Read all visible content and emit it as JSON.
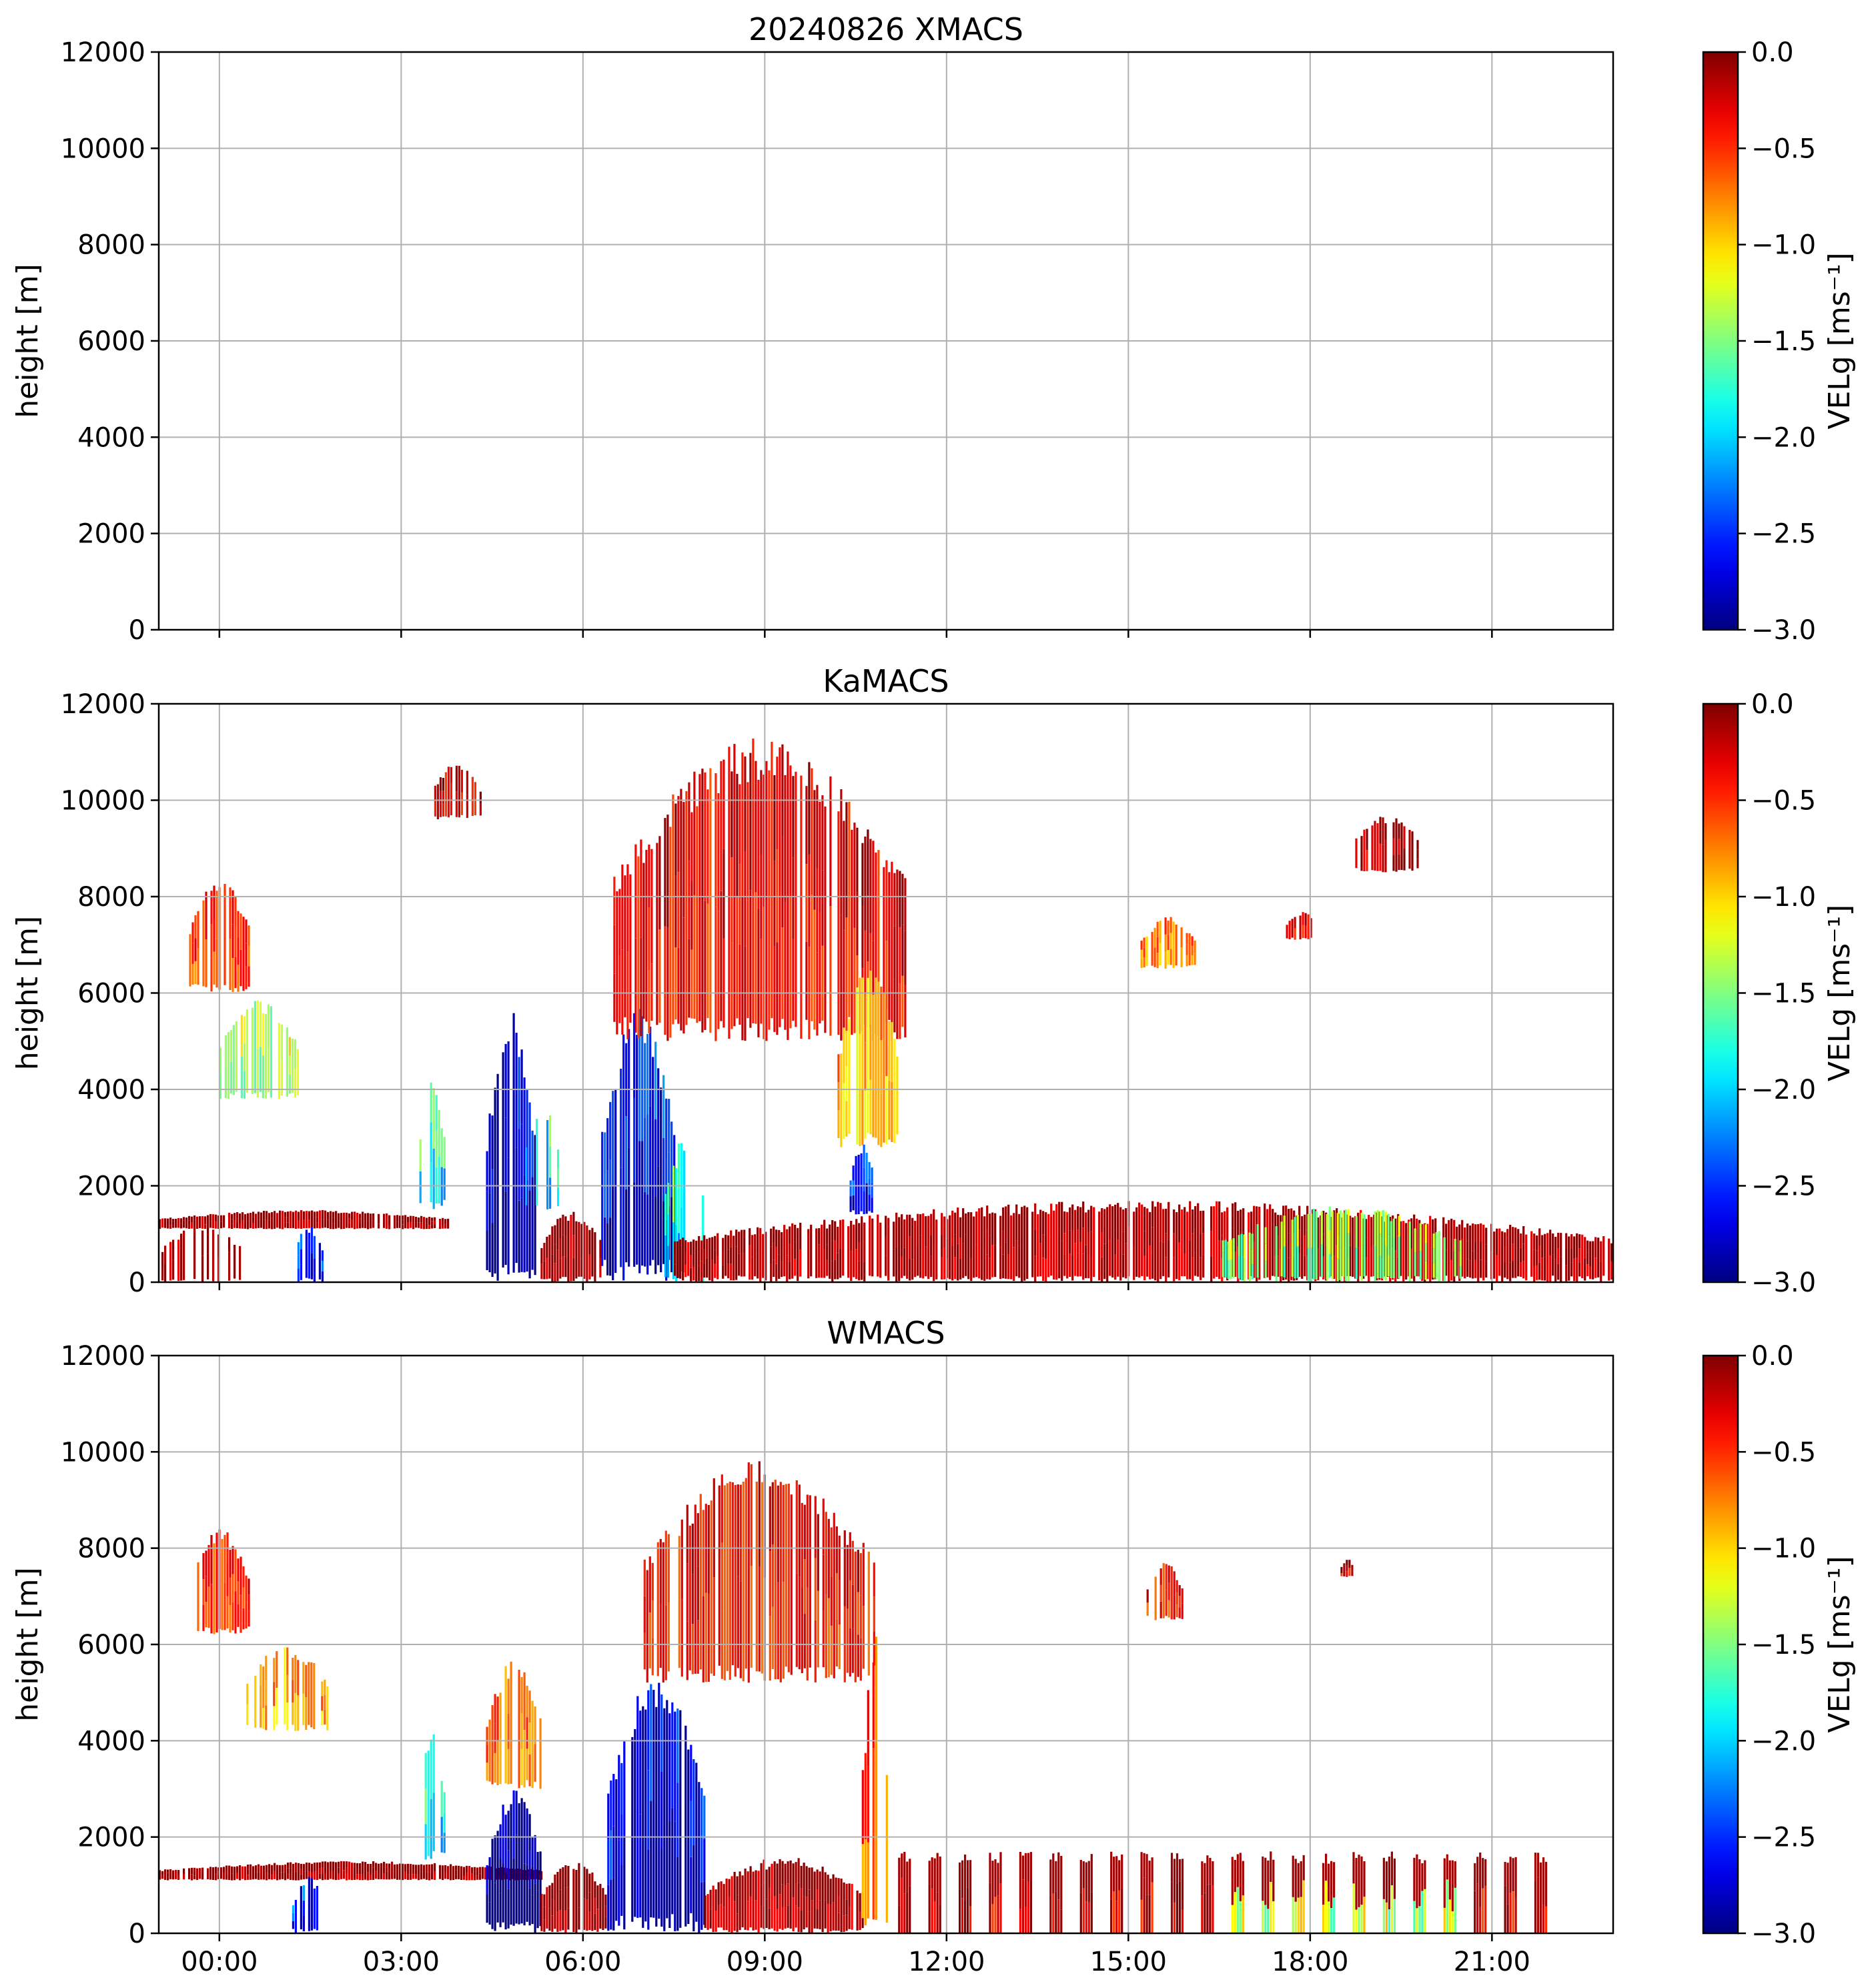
{
  "chart_data": [
    {
      "type": "heatmap",
      "title": "20240826 XMACS",
      "xlabel": "",
      "ylabel": "height [m]",
      "ylim": [
        0,
        12000
      ],
      "xlim_hours": [
        0,
        24
      ],
      "yticks": [
        0,
        2000,
        4000,
        6000,
        8000,
        10000,
        12000
      ],
      "xticks": [
        1,
        4,
        7,
        10,
        13,
        16,
        19,
        22
      ],
      "xtick_labels": [],
      "grid": true,
      "colorbar": {
        "label": "VELg [ms⁻¹]",
        "range": [
          -3.0,
          0.0
        ],
        "ticks": [
          "0.0",
          "−0.5",
          "−1.0",
          "−1.5",
          "−2.0",
          "−2.5",
          "−3.0"
        ],
        "colormap": "jet"
      },
      "regions": []
    },
    {
      "type": "heatmap",
      "title": "KaMACS",
      "xlabel": "",
      "ylabel": "height [m]",
      "ylim": [
        0,
        12000
      ],
      "xlim_hours": [
        0,
        24
      ],
      "yticks": [
        0,
        2000,
        4000,
        6000,
        8000,
        10000,
        12000
      ],
      "xticks": [
        1,
        4,
        7,
        10,
        13,
        16,
        19,
        22
      ],
      "xtick_labels": [],
      "grid": true,
      "colorbar": {
        "label": "VELg [ms⁻¹]",
        "range": [
          -3.0,
          0.0
        ],
        "ticks": [
          "0.0",
          "−0.5",
          "−1.0",
          "−1.5",
          "−2.0",
          "−2.5",
          "−3.0"
        ],
        "colormap": "jet"
      },
      "regions": [
        {
          "t0": 0.0,
          "t1": 1.4,
          "z0": 0,
          "z1": 1200,
          "v": -0.1,
          "fill": 0.45
        },
        {
          "t0": 0.0,
          "t1": 4.8,
          "z0": 1100,
          "z1": 1500,
          "v": -0.05,
          "fill": 0.95
        },
        {
          "t0": 0.5,
          "t1": 1.5,
          "z0": 6000,
          "z1": 8400,
          "v": -0.6,
          "fill": 0.85
        },
        {
          "t0": 1.0,
          "t1": 2.3,
          "z0": 3800,
          "z1": 5900,
          "v": -1.4,
          "fill": 0.7
        },
        {
          "t0": 2.2,
          "t1": 2.7,
          "z0": 0,
          "z1": 1200,
          "v": -2.5,
          "fill": 0.75
        },
        {
          "t0": 4.3,
          "t1": 4.7,
          "z0": 1500,
          "z1": 4200,
          "v": -1.8,
          "fill": 0.6
        },
        {
          "t0": 4.5,
          "t1": 5.3,
          "z0": 9600,
          "z1": 10800,
          "v": -0.4,
          "fill": 0.75
        },
        {
          "t0": 5.4,
          "t1": 6.2,
          "z0": 0,
          "z1": 5700,
          "v": -2.8,
          "fill": 0.95
        },
        {
          "t0": 6.0,
          "t1": 6.6,
          "z0": 1500,
          "z1": 3800,
          "v": -1.8,
          "fill": 0.5
        },
        {
          "t0": 6.3,
          "t1": 7.3,
          "z0": 0,
          "z1": 1500,
          "v": -0.1,
          "fill": 0.9
        },
        {
          "t0": 7.3,
          "t1": 8.5,
          "z0": 0,
          "z1": 5800,
          "v": -2.6,
          "fill": 0.95
        },
        {
          "t0": 7.5,
          "t1": 12.3,
          "z0": 5000,
          "z1": 11300,
          "v": -0.4,
          "fill": 0.88
        },
        {
          "t0": 8.3,
          "t1": 9.0,
          "z0": 0,
          "z1": 3000,
          "v": -1.8,
          "fill": 0.7
        },
        {
          "t0": 11.2,
          "t1": 12.2,
          "z0": 2800,
          "z1": 6500,
          "v": -1.0,
          "fill": 0.85
        },
        {
          "t0": 11.4,
          "t1": 11.8,
          "z0": 1400,
          "z1": 2900,
          "v": -2.6,
          "fill": 0.85
        },
        {
          "t0": 8.5,
          "t1": 24.0,
          "z0": 0,
          "z1": 1700,
          "v": -0.15,
          "fill": 0.92
        },
        {
          "t0": 17.5,
          "t1": 21.5,
          "z0": 0,
          "z1": 1600,
          "v": -1.5,
          "fill": 0.55
        },
        {
          "t0": 16.2,
          "t1": 17.1,
          "z0": 6500,
          "z1": 7600,
          "v": -0.8,
          "fill": 0.85
        },
        {
          "t0": 18.6,
          "t1": 19.1,
          "z0": 7100,
          "z1": 7700,
          "v": -0.4,
          "fill": 0.8
        },
        {
          "t0": 19.7,
          "t1": 20.8,
          "z0": 8500,
          "z1": 9700,
          "v": -0.2,
          "fill": 0.75
        }
      ]
    },
    {
      "type": "heatmap",
      "title": "WMACS",
      "xlabel": "",
      "ylabel": "height [m]",
      "ylim": [
        0,
        12000
      ],
      "xlim_hours": [
        0,
        24
      ],
      "yticks": [
        0,
        2000,
        4000,
        6000,
        8000,
        10000,
        12000
      ],
      "xticks": [
        1,
        4,
        7,
        10,
        13,
        16,
        19,
        22
      ],
      "xtick_labels": [
        "00:00",
        "03:00",
        "06:00",
        "09:00",
        "12:00",
        "15:00",
        "18:00",
        "21:00"
      ],
      "grid": true,
      "colorbar": {
        "label": "VELg [ms⁻¹]",
        "range": [
          -3.0,
          0.0
        ],
        "ticks": [
          "0.0",
          "−0.5",
          "−1.0",
          "−1.5",
          "−2.0",
          "−2.5",
          "−3.0"
        ],
        "colormap": "jet"
      },
      "regions": [
        {
          "t0": 0.0,
          "t1": 6.3,
          "z0": 1100,
          "z1": 1500,
          "v": -0.05,
          "fill": 0.95
        },
        {
          "t0": 0.5,
          "t1": 1.5,
          "z0": 6200,
          "z1": 8400,
          "v": -0.6,
          "fill": 0.85
        },
        {
          "t0": 1.4,
          "t1": 2.8,
          "z0": 4200,
          "z1": 6000,
          "v": -0.9,
          "fill": 0.7
        },
        {
          "t0": 2.2,
          "t1": 2.7,
          "z0": 0,
          "z1": 1200,
          "v": -2.5,
          "fill": 0.75
        },
        {
          "t0": 4.3,
          "t1": 4.7,
          "z0": 1500,
          "z1": 4200,
          "v": -1.8,
          "fill": 0.6
        },
        {
          "t0": 5.4,
          "t1": 6.3,
          "z0": 0,
          "z1": 3000,
          "v": -3.0,
          "fill": 0.97
        },
        {
          "t0": 5.4,
          "t1": 6.3,
          "z0": 3000,
          "z1": 5700,
          "v": -0.8,
          "fill": 0.85
        },
        {
          "t0": 6.3,
          "t1": 7.4,
          "z0": 0,
          "z1": 1500,
          "v": -0.1,
          "fill": 0.9
        },
        {
          "t0": 7.4,
          "t1": 9.0,
          "z0": 0,
          "z1": 5500,
          "v": -2.7,
          "fill": 0.93
        },
        {
          "t0": 8.0,
          "t1": 11.8,
          "z0": 5200,
          "z1": 9900,
          "v": -0.5,
          "fill": 0.85
        },
        {
          "t0": 9.0,
          "t1": 11.6,
          "z0": 0,
          "z1": 1600,
          "v": -0.15,
          "fill": 0.92
        },
        {
          "t0": 11.6,
          "t1": 12.0,
          "z0": 0,
          "z1": 6200,
          "v": -0.7,
          "fill": 0.6
        },
        {
          "t0": 16.3,
          "t1": 16.9,
          "z0": 6500,
          "z1": 7700,
          "v": -0.5,
          "fill": 0.75
        },
        {
          "t0": 19.5,
          "t1": 19.7,
          "z0": 7400,
          "z1": 7800,
          "v": -0.3,
          "fill": 0.9
        }
      ],
      "strips": {
        "t0": 12.2,
        "t1": 23.0,
        "step": 0.5,
        "width": 0.2,
        "z1": 1700
      }
    }
  ]
}
